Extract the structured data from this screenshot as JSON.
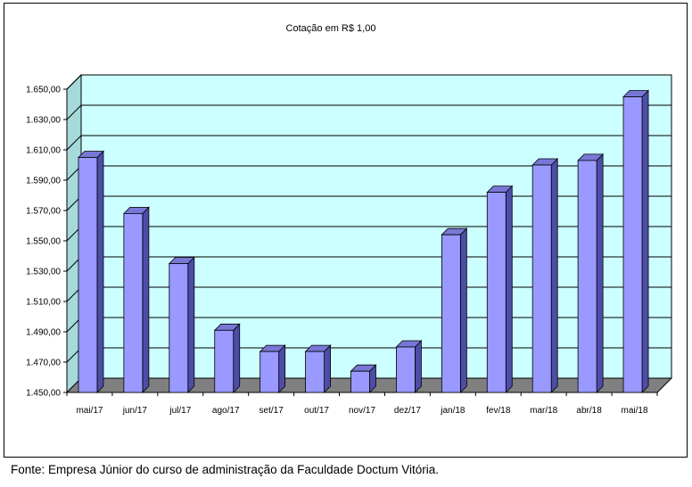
{
  "chart_data": {
    "type": "bar",
    "title": "Cotação em R$ 1,00",
    "xlabel": "",
    "ylabel": "",
    "categories": [
      "mai/17",
      "jun/17",
      "jul/17",
      "ago/17",
      "set/17",
      "out/17",
      "nov/17",
      "dez/17",
      "jan/18",
      "fev/18",
      "mar/18",
      "abr/18",
      "mai/18"
    ],
    "values": [
      1605,
      1568,
      1535,
      1491,
      1477,
      1477,
      1464,
      1480,
      1554,
      1582,
      1600,
      1603,
      1645
    ],
    "ylim": [
      1450,
      1650
    ],
    "yticks": [
      1450,
      1470,
      1490,
      1510,
      1530,
      1550,
      1570,
      1590,
      1610,
      1630,
      1650
    ],
    "ytick_labels": [
      "1.450,00",
      "1.470,00",
      "1.490,00",
      "1.510,00",
      "1.530,00",
      "1.550,00",
      "1.570,00",
      "1.590,00",
      "1.610,00",
      "1.630,00",
      "1.650,00"
    ],
    "grid": true,
    "style": "3d",
    "colors": {
      "bar_front": "#9999ff",
      "bar_side": "#4d4da8",
      "bar_top": "#7777d6",
      "wall": "#ccffff",
      "floor": "#808080"
    }
  },
  "source_note": "Fonte: Empresa Júnior do curso de administração  da  Faculdade Doctum Vitória."
}
